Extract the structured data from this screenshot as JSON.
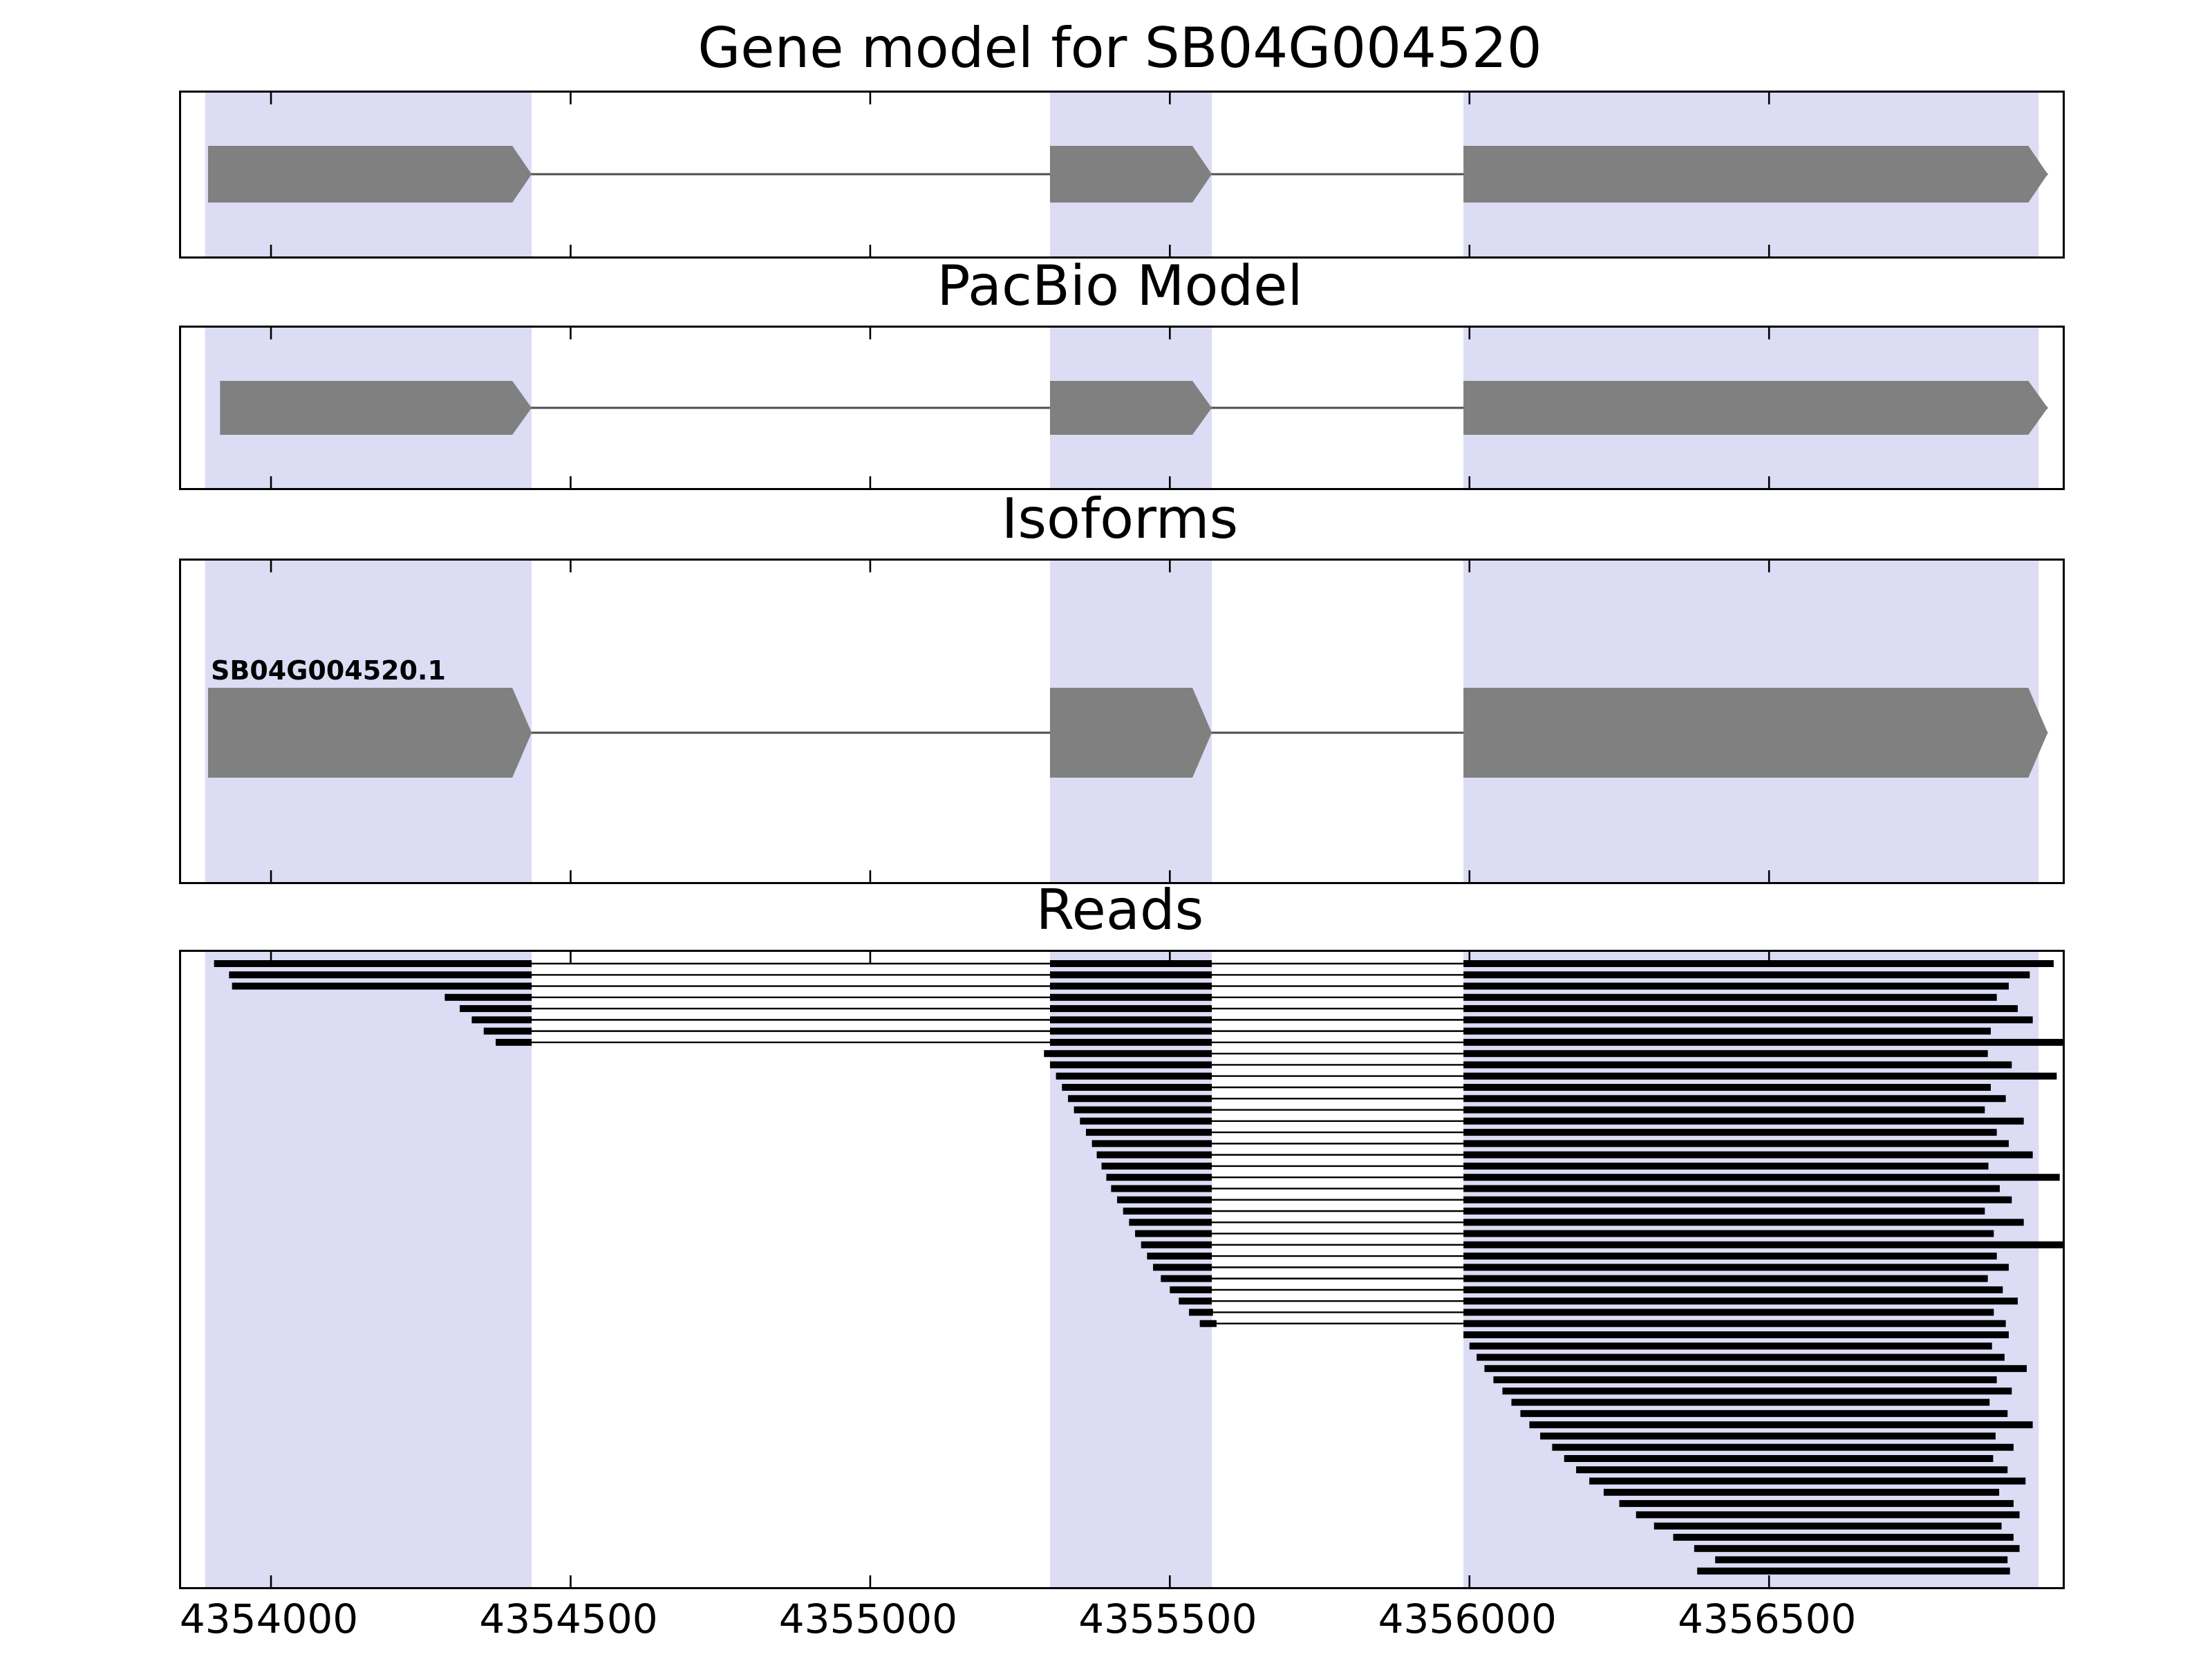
{
  "titles": {
    "gene_model": "Gene model for SB04G004520",
    "pacbio": "PacBio Model",
    "isoforms": "Isoforms",
    "reads": "Reads"
  },
  "colors": {
    "exon": "#808080",
    "highlight": "#dcdcf5",
    "read": "#000000",
    "intron_line": "#4d4d4d",
    "border": "#000000"
  },
  "chart_data": {
    "type": "gene-model-tracks",
    "x_axis": {
      "min": 4353850,
      "max": 4356990,
      "ticks": [
        4354000,
        4354500,
        4355000,
        4355500,
        4356000,
        4356500
      ]
    },
    "highlights": [
      [
        4353890,
        4354435
      ],
      [
        4355300,
        4355570
      ],
      [
        4355990,
        4356950
      ]
    ],
    "tracks": [
      {
        "id": "gene_model",
        "exons": [
          [
            4353895,
            4354435
          ],
          [
            4355300,
            4355570
          ],
          [
            4355990,
            4356965
          ]
        ]
      },
      {
        "id": "pacbio",
        "exons": [
          [
            4353915,
            4354435
          ],
          [
            4355300,
            4355570
          ],
          [
            4355990,
            4356965
          ]
        ]
      },
      {
        "id": "isoform",
        "label": "SB04G004520.1",
        "exons": [
          [
            4353895,
            4354435
          ],
          [
            4355300,
            4355570
          ],
          [
            4355990,
            4356965
          ]
        ]
      }
    ],
    "reads": [
      [
        [
          4353905,
          4354435
        ],
        [
          4355300,
          4355570
        ],
        [
          4355990,
          4356975
        ]
      ],
      [
        [
          4353930,
          4354435
        ],
        [
          4355300,
          4355570
        ],
        [
          4355990,
          4356935
        ]
      ],
      [
        [
          4353935,
          4354435
        ],
        [
          4355300,
          4355570
        ],
        [
          4355990,
          4356900
        ]
      ],
      [
        [
          4354290,
          4354435
        ],
        [
          4355300,
          4355570
        ],
        [
          4355990,
          4356880
        ]
      ],
      [
        [
          4354315,
          4354435
        ],
        [
          4355300,
          4355570
        ],
        [
          4355990,
          4356915
        ]
      ],
      [
        [
          4354335,
          4354435
        ],
        [
          4355300,
          4355570
        ],
        [
          4355990,
          4356940
        ]
      ],
      [
        [
          4354355,
          4354435
        ],
        [
          4355300,
          4355570
        ],
        [
          4355990,
          4356870
        ]
      ],
      [
        [
          4354375,
          4354435
        ],
        [
          4355300,
          4355570
        ],
        [
          4355990,
          4356990
        ]
      ],
      [
        [
          4355290,
          4355570
        ],
        [
          4355990,
          4356865
        ]
      ],
      [
        [
          4355300,
          4355570
        ],
        [
          4355990,
          4356905
        ]
      ],
      [
        [
          4355310,
          4355570
        ],
        [
          4355990,
          4356980
        ]
      ],
      [
        [
          4355320,
          4355570
        ],
        [
          4355990,
          4356870
        ]
      ],
      [
        [
          4355330,
          4355570
        ],
        [
          4355990,
          4356895
        ]
      ],
      [
        [
          4355340,
          4355570
        ],
        [
          4355990,
          4356860
        ]
      ],
      [
        [
          4355350,
          4355570
        ],
        [
          4355990,
          4356925
        ]
      ],
      [
        [
          4355360,
          4355570
        ],
        [
          4355990,
          4356880
        ]
      ],
      [
        [
          4355370,
          4355570
        ],
        [
          4355990,
          4356900
        ]
      ],
      [
        [
          4355378,
          4355570
        ],
        [
          4355990,
          4356940
        ]
      ],
      [
        [
          4355386,
          4355570
        ],
        [
          4355990,
          4356866
        ]
      ],
      [
        [
          4355394,
          4355570
        ],
        [
          4355990,
          4356985
        ]
      ],
      [
        [
          4355402,
          4355570
        ],
        [
          4355990,
          4356885
        ]
      ],
      [
        [
          4355412,
          4355570
        ],
        [
          4355990,
          4356905
        ]
      ],
      [
        [
          4355422,
          4355570
        ],
        [
          4355990,
          4356860
        ]
      ],
      [
        [
          4355432,
          4355570
        ],
        [
          4355990,
          4356925
        ]
      ],
      [
        [
          4355442,
          4355570
        ],
        [
          4355990,
          4356875
        ]
      ],
      [
        [
          4355452,
          4355570
        ],
        [
          4355990,
          4356990
        ]
      ],
      [
        [
          4355462,
          4355570
        ],
        [
          4355990,
          4356880
        ]
      ],
      [
        [
          4355472,
          4355570
        ],
        [
          4355990,
          4356900
        ]
      ],
      [
        [
          4355485,
          4355570
        ],
        [
          4355990,
          4356865
        ]
      ],
      [
        [
          4355500,
          4355570
        ],
        [
          4355990,
          4356890
        ]
      ],
      [
        [
          4355515,
          4355570
        ],
        [
          4355990,
          4356915
        ]
      ],
      [
        [
          4355532,
          4355572
        ],
        [
          4355990,
          4356875
        ]
      ],
      [
        [
          4355550,
          4355578
        ],
        [
          4355990,
          4356895
        ]
      ],
      [
        [
          4355990,
          4356900
        ]
      ],
      [
        [
          4356000,
          4356872
        ]
      ],
      [
        [
          4356012,
          4356893
        ]
      ],
      [
        [
          4356025,
          4356930
        ]
      ],
      [
        [
          4356040,
          4356880
        ]
      ],
      [
        [
          4356055,
          4356905
        ]
      ],
      [
        [
          4356070,
          4356868
        ]
      ],
      [
        [
          4356085,
          4356898
        ]
      ],
      [
        [
          4356100,
          4356940
        ]
      ],
      [
        [
          4356118,
          4356878
        ]
      ],
      [
        [
          4356138,
          4356908
        ]
      ],
      [
        [
          4356158,
          4356874
        ]
      ],
      [
        [
          4356178,
          4356898
        ]
      ],
      [
        [
          4356200,
          4356928
        ]
      ],
      [
        [
          4356224,
          4356884
        ]
      ],
      [
        [
          4356250,
          4356908
        ]
      ],
      [
        [
          4356278,
          4356918
        ]
      ],
      [
        [
          4356308,
          4356888
        ]
      ],
      [
        [
          4356340,
          4356908
        ]
      ],
      [
        [
          4356375,
          4356918
        ]
      ],
      [
        [
          4356410,
          4356898
        ]
      ],
      [
        [
          4356380,
          4356902
        ]
      ]
    ]
  }
}
